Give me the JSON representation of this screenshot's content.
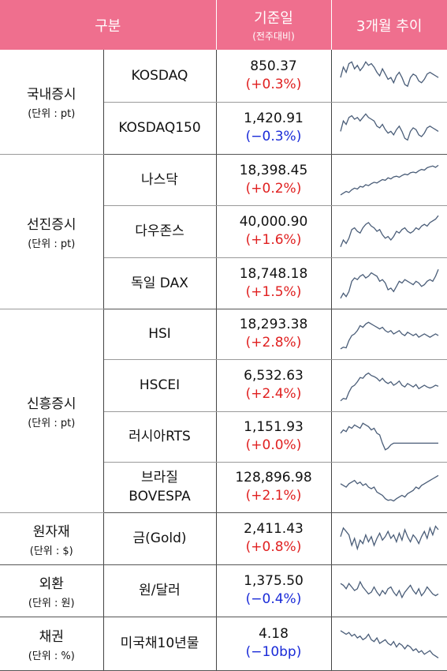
{
  "header": {
    "col_category": "구분",
    "col_value": "기준일",
    "col_value_sub": "(전주대비)",
    "col_trend": "3개월 추이"
  },
  "groups": [
    {
      "name": "국내증시",
      "unit": "(단위 : pt)",
      "rows": [
        {
          "name": "KOSDAQ",
          "value": "850.37",
          "change": "(+0.3%)",
          "dir": "up",
          "trend": [
            0.45,
            0.75,
            0.6,
            0.85,
            0.9,
            0.7,
            0.8,
            0.65,
            0.75,
            0.9,
            0.8,
            0.85,
            0.75,
            0.6,
            0.5,
            0.7,
            0.55,
            0.4,
            0.45,
            0.3,
            0.5,
            0.6,
            0.45,
            0.25,
            0.2,
            0.45,
            0.55,
            0.5,
            0.35,
            0.3,
            0.4,
            0.55,
            0.6,
            0.55,
            0.5,
            0.45
          ]
        },
        {
          "name": "KOSDAQ150",
          "value": "1,420.91",
          "change": "(−0.3%)",
          "dir": "down",
          "trend": [
            0.4,
            0.7,
            0.6,
            0.8,
            0.85,
            0.75,
            0.8,
            0.7,
            0.8,
            0.9,
            0.8,
            0.75,
            0.7,
            0.55,
            0.5,
            0.6,
            0.45,
            0.35,
            0.4,
            0.3,
            0.45,
            0.55,
            0.4,
            0.2,
            0.15,
            0.4,
            0.5,
            0.45,
            0.3,
            0.25,
            0.35,
            0.5,
            0.55,
            0.5,
            0.45,
            0.4
          ]
        }
      ]
    },
    {
      "name": "선진증시",
      "unit": "(단위 : pt)",
      "rows": [
        {
          "name": "나스닥",
          "value": "18,398.45",
          "change": "(+0.2%)",
          "dir": "up",
          "trend": [
            0.05,
            0.1,
            0.15,
            0.12,
            0.2,
            0.25,
            0.22,
            0.3,
            0.28,
            0.35,
            0.32,
            0.38,
            0.42,
            0.4,
            0.45,
            0.5,
            0.48,
            0.55,
            0.52,
            0.58,
            0.6,
            0.57,
            0.62,
            0.66,
            0.64,
            0.7,
            0.72,
            0.7,
            0.76,
            0.8,
            0.78,
            0.85,
            0.88,
            0.9,
            0.86,
            0.92
          ]
        },
        {
          "name": "다우존스",
          "value": "40,000.90",
          "change": "(+1.6%)",
          "dir": "up",
          "trend": [
            0.05,
            0.25,
            0.15,
            0.3,
            0.55,
            0.6,
            0.5,
            0.45,
            0.6,
            0.7,
            0.75,
            0.65,
            0.6,
            0.5,
            0.55,
            0.4,
            0.3,
            0.35,
            0.25,
            0.35,
            0.5,
            0.45,
            0.55,
            0.6,
            0.5,
            0.45,
            0.5,
            0.6,
            0.55,
            0.65,
            0.7,
            0.65,
            0.75,
            0.8,
            0.85,
            0.95
          ]
        },
        {
          "name": "독일 DAX",
          "value": "18,748.18",
          "change": "(+1.5%)",
          "dir": "up",
          "trend": [
            0.05,
            0.2,
            0.1,
            0.25,
            0.55,
            0.65,
            0.6,
            0.7,
            0.75,
            0.65,
            0.7,
            0.8,
            0.75,
            0.7,
            0.55,
            0.6,
            0.5,
            0.3,
            0.35,
            0.25,
            0.4,
            0.55,
            0.5,
            0.6,
            0.55,
            0.5,
            0.45,
            0.55,
            0.5,
            0.4,
            0.45,
            0.55,
            0.6,
            0.55,
            0.7,
            0.9
          ]
        }
      ]
    },
    {
      "name": "신흥증시",
      "unit": "(단위 : pt)",
      "rows": [
        {
          "name": "HSI",
          "value": "18,293.38",
          "change": "(+2.8%)",
          "dir": "up",
          "trend": [
            0.05,
            0.1,
            0.08,
            0.3,
            0.45,
            0.5,
            0.6,
            0.75,
            0.7,
            0.8,
            0.85,
            0.8,
            0.75,
            0.7,
            0.65,
            0.7,
            0.6,
            0.55,
            0.6,
            0.5,
            0.55,
            0.6,
            0.5,
            0.45,
            0.55,
            0.5,
            0.45,
            0.5,
            0.4,
            0.45,
            0.5,
            0.45,
            0.4,
            0.45,
            0.5,
            0.45
          ]
        },
        {
          "name": "HSCEI",
          "value": "6,532.63",
          "change": "(+2.4%)",
          "dir": "up",
          "trend": [
            0.05,
            0.12,
            0.1,
            0.3,
            0.45,
            0.5,
            0.6,
            0.72,
            0.7,
            0.8,
            0.85,
            0.78,
            0.75,
            0.7,
            0.62,
            0.7,
            0.6,
            0.55,
            0.6,
            0.5,
            0.55,
            0.62,
            0.5,
            0.45,
            0.55,
            0.5,
            0.45,
            0.52,
            0.4,
            0.45,
            0.5,
            0.45,
            0.42,
            0.45,
            0.5,
            0.47
          ]
        },
        {
          "name": "러시아RTS",
          "value": "1,151.93",
          "change": "(+0.0%)",
          "dir": "up",
          "trend": [
            0.6,
            0.7,
            0.65,
            0.8,
            0.75,
            0.85,
            0.8,
            0.75,
            0.9,
            0.85,
            0.8,
            0.7,
            0.75,
            0.6,
            0.55,
            0.3,
            0.1,
            0.15,
            0.25,
            0.3,
            0.3,
            0.3,
            0.3,
            0.3,
            0.3,
            0.3,
            0.3,
            0.3,
            0.3,
            0.3,
            0.3,
            0.3,
            0.3,
            0.3,
            0.3,
            0.3
          ]
        },
        {
          "name": "브라질\nBOVESPA",
          "value": "128,896.98",
          "change": "(+2.1%)",
          "dir": "up",
          "trend": [
            0.6,
            0.55,
            0.5,
            0.6,
            0.65,
            0.7,
            0.6,
            0.65,
            0.55,
            0.6,
            0.5,
            0.45,
            0.5,
            0.35,
            0.3,
            0.25,
            0.15,
            0.1,
            0.12,
            0.08,
            0.15,
            0.2,
            0.25,
            0.2,
            0.3,
            0.35,
            0.4,
            0.5,
            0.45,
            0.55,
            0.6,
            0.65,
            0.7,
            0.75,
            0.8,
            0.85
          ]
        }
      ]
    },
    {
      "name": "원자재",
      "unit": "(단위 : $)",
      "rows": [
        {
          "name": "금(Gold)",
          "value": "2,411.43",
          "change": "(+0.8%)",
          "dir": "up",
          "trend": [
            0.55,
            0.8,
            0.7,
            0.6,
            0.3,
            0.5,
            0.2,
            0.45,
            0.35,
            0.6,
            0.4,
            0.55,
            0.3,
            0.5,
            0.65,
            0.45,
            0.55,
            0.7,
            0.5,
            0.6,
            0.4,
            0.65,
            0.45,
            0.75,
            0.55,
            0.4,
            0.6,
            0.5,
            0.35,
            0.55,
            0.7,
            0.5,
            0.8,
            0.6,
            0.85,
            0.75
          ]
        }
      ]
    },
    {
      "name": "외환",
      "unit": "(단위 : 원)",
      "rows": [
        {
          "name": "원/달러",
          "value": "1,375.50",
          "change": "(−0.4%)",
          "dir": "down",
          "trend": [
            0.7,
            0.65,
            0.55,
            0.7,
            0.6,
            0.5,
            0.55,
            0.75,
            0.6,
            0.5,
            0.4,
            0.45,
            0.6,
            0.45,
            0.35,
            0.5,
            0.4,
            0.55,
            0.6,
            0.45,
            0.35,
            0.5,
            0.3,
            0.45,
            0.55,
            0.65,
            0.5,
            0.4,
            0.55,
            0.35,
            0.45,
            0.6,
            0.5,
            0.4,
            0.35,
            0.4
          ]
        }
      ]
    },
    {
      "name": "채권",
      "unit": "(단위 : %)",
      "rows": [
        {
          "name": "미국채10년물",
          "value": "4.18",
          "change": "(−10bp)",
          "dir": "down",
          "trend": [
            0.85,
            0.8,
            0.75,
            0.8,
            0.7,
            0.75,
            0.65,
            0.7,
            0.6,
            0.65,
            0.75,
            0.6,
            0.55,
            0.65,
            0.5,
            0.55,
            0.6,
            0.5,
            0.45,
            0.55,
            0.4,
            0.5,
            0.45,
            0.35,
            0.45,
            0.4,
            0.3,
            0.35,
            0.25,
            0.3,
            0.2,
            0.25,
            0.3,
            0.2,
            0.15,
            0.1
          ]
        }
      ]
    }
  ]
}
